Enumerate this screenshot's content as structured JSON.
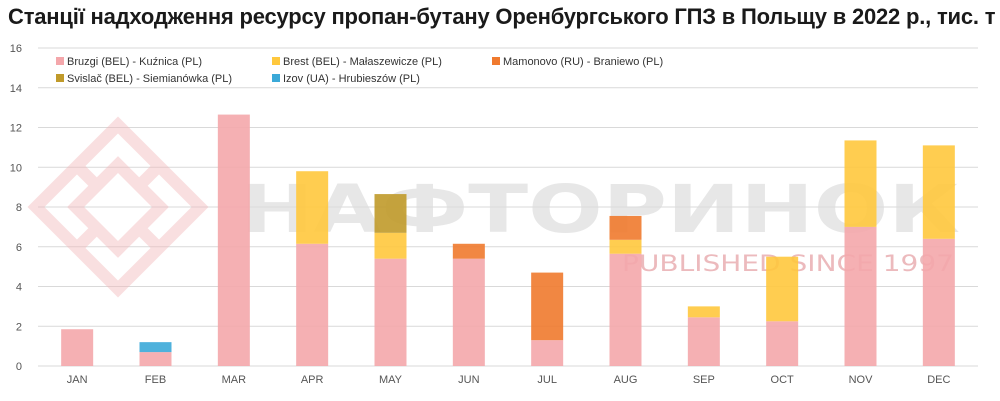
{
  "chart_data": {
    "type": "bar",
    "stacked": true,
    "title": "Станції надходження ресурсу пропан-бутану Оренбургського ГПЗ  в Польщу в 2022 р., тис. т",
    "xlabel": "",
    "ylabel": "",
    "ylim": [
      0,
      16
    ],
    "yticks": [
      0,
      2,
      4,
      6,
      8,
      10,
      12,
      14,
      16
    ],
    "grid": true,
    "legend_position": "top-left",
    "categories": [
      "JAN",
      "FEB",
      "MAR",
      "APR",
      "MAY",
      "JUN",
      "JUL",
      "AUG",
      "SEP",
      "OCT",
      "NOV",
      "DEC"
    ],
    "series": [
      {
        "name": "Bruzgi (BEL) - Kuźnica (PL)",
        "color": "#f4a7ab",
        "values": [
          1.85,
          0.7,
          12.65,
          6.15,
          5.4,
          5.4,
          1.3,
          5.65,
          2.45,
          2.25,
          7.0,
          6.4
        ]
      },
      {
        "name": "Brest (BEL) - Małaszewicze (PL)",
        "color": "#ffc83d",
        "values": [
          0,
          0,
          0,
          3.65,
          1.3,
          0,
          0,
          0.7,
          0.55,
          3.25,
          4.35,
          4.7
        ]
      },
      {
        "name": "Mamonovo (RU) - Braniewo (PL)",
        "color": "#f07a2e",
        "values": [
          0,
          0,
          0,
          0,
          0,
          0.75,
          3.4,
          1.2,
          0,
          0,
          0,
          0
        ]
      },
      {
        "name": "Svislač (BEL) - Siemianówka (PL)",
        "color": "#c09a2a",
        "values": [
          0,
          0,
          0,
          0,
          1.95,
          0,
          0,
          0,
          0,
          0,
          0,
          0
        ]
      },
      {
        "name": "Izov (UA) - Hrubieszów (PL)",
        "color": "#3ba9d8",
        "values": [
          0,
          0.5,
          0,
          0,
          0,
          0,
          0,
          0,
          0,
          0,
          0,
          0
        ]
      }
    ]
  },
  "watermark": {
    "brand": "НАФТОРИНОК",
    "tagline": "PUBLISHED SINCE 1997",
    "color": "#e8b0b4"
  }
}
